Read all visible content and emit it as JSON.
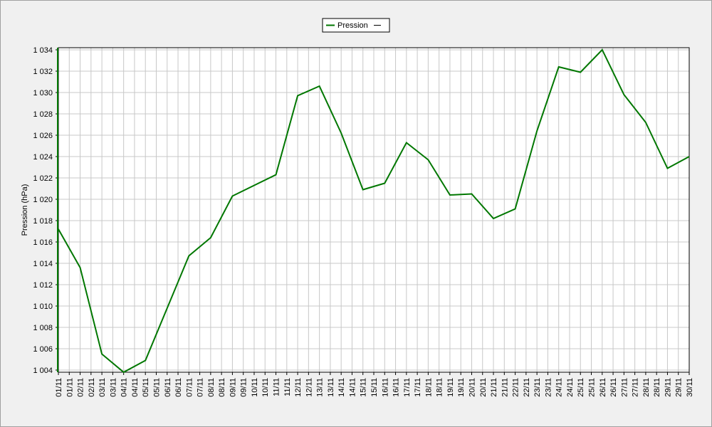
{
  "chart_data": {
    "type": "line",
    "y_label": "Pression (hPa)",
    "series": [
      {
        "name": "Pression",
        "color": "#007700",
        "values": [
          1017.2,
          1013.6,
          1005.5,
          1003.8,
          1004.9,
          1009.8,
          1014.7,
          1016.4,
          1020.3,
          1021.3,
          1022.3,
          1029.7,
          1030.6,
          1026.2,
          1020.9,
          1021.5,
          1025.3,
          1023.7,
          1020.4,
          1020.5,
          1018.2,
          1019.1,
          1026.4,
          1032.4,
          1031.9,
          1034.0,
          1029.8,
          1027.2,
          1022.9,
          1024.0
        ]
      }
    ],
    "x": [
      1,
      2,
      3,
      4,
      5,
      6,
      7,
      8,
      9,
      10,
      11,
      12,
      13,
      14,
      15,
      16,
      17,
      18,
      19,
      20,
      21,
      22,
      23,
      24,
      25,
      26,
      27,
      28,
      29,
      30
    ],
    "xlim": [
      1,
      30
    ],
    "xticks": [
      {
        "value": 1,
        "label": "01/11"
      },
      {
        "value": 1.5,
        "label": "01/11"
      },
      {
        "value": 2,
        "label": "02/11"
      },
      {
        "value": 2.5,
        "label": "02/11"
      },
      {
        "value": 3,
        "label": "03/11"
      },
      {
        "value": 3.5,
        "label": "03/11"
      },
      {
        "value": 4,
        "label": "04/11"
      },
      {
        "value": 4.5,
        "label": "04/11"
      },
      {
        "value": 5,
        "label": "05/11"
      },
      {
        "value": 5.5,
        "label": "05/11"
      },
      {
        "value": 6,
        "label": "06/11"
      },
      {
        "value": 6.5,
        "label": "06/11"
      },
      {
        "value": 7,
        "label": "07/11"
      },
      {
        "value": 7.5,
        "label": "07/11"
      },
      {
        "value": 8,
        "label": "08/11"
      },
      {
        "value": 8.5,
        "label": "08/11"
      },
      {
        "value": 9,
        "label": "09/11"
      },
      {
        "value": 9.5,
        "label": "09/11"
      },
      {
        "value": 10,
        "label": "10/11"
      },
      {
        "value": 10.5,
        "label": "10/11"
      },
      {
        "value": 11,
        "label": "11/11"
      },
      {
        "value": 11.5,
        "label": "11/11"
      },
      {
        "value": 12,
        "label": "12/11"
      },
      {
        "value": 12.5,
        "label": "12/11"
      },
      {
        "value": 13,
        "label": "13/11"
      },
      {
        "value": 13.5,
        "label": "13/11"
      },
      {
        "value": 14,
        "label": "14/11"
      },
      {
        "value": 14.5,
        "label": "14/11"
      },
      {
        "value": 15,
        "label": "15/11"
      },
      {
        "value": 15.5,
        "label": "15/11"
      },
      {
        "value": 16,
        "label": "16/11"
      },
      {
        "value": 16.5,
        "label": "16/11"
      },
      {
        "value": 17,
        "label": "17/11"
      },
      {
        "value": 17.5,
        "label": "17/11"
      },
      {
        "value": 18,
        "label": "18/11"
      },
      {
        "value": 18.5,
        "label": "18/11"
      },
      {
        "value": 19,
        "label": "19/11"
      },
      {
        "value": 19.5,
        "label": "19/11"
      },
      {
        "value": 20,
        "label": "20/11"
      },
      {
        "value": 20.5,
        "label": "20/11"
      },
      {
        "value": 21,
        "label": "21/11"
      },
      {
        "value": 21.5,
        "label": "21/11"
      },
      {
        "value": 22,
        "label": "22/11"
      },
      {
        "value": 22.5,
        "label": "22/11"
      },
      {
        "value": 23,
        "label": "23/11"
      },
      {
        "value": 23.5,
        "label": "23/11"
      },
      {
        "value": 24,
        "label": "24/11"
      },
      {
        "value": 24.5,
        "label": "24/11"
      },
      {
        "value": 25,
        "label": "25/11"
      },
      {
        "value": 25.5,
        "label": "25/11"
      },
      {
        "value": 26,
        "label": "26/11"
      },
      {
        "value": 26.5,
        "label": "26/11"
      },
      {
        "value": 27,
        "label": "27/11"
      },
      {
        "value": 27.5,
        "label": "27/11"
      },
      {
        "value": 28,
        "label": "28/11"
      },
      {
        "value": 28.5,
        "label": "28/11"
      },
      {
        "value": 29,
        "label": "29/11"
      },
      {
        "value": 29.5,
        "label": "29/11"
      },
      {
        "value": 30,
        "label": "30/11"
      }
    ],
    "ylim": [
      1003.8,
      1034.2
    ],
    "yticks": [
      {
        "value": 1004,
        "label": "1 004"
      },
      {
        "value": 1006,
        "label": "1 006"
      },
      {
        "value": 1008,
        "label": "1 008"
      },
      {
        "value": 1010,
        "label": "1 010"
      },
      {
        "value": 1012,
        "label": "1 012"
      },
      {
        "value": 1014,
        "label": "1 014"
      },
      {
        "value": 1016,
        "label": "1 016"
      },
      {
        "value": 1018,
        "label": "1 018"
      },
      {
        "value": 1020,
        "label": "1 020"
      },
      {
        "value": 1022,
        "label": "1 022"
      },
      {
        "value": 1024,
        "label": "1 024"
      },
      {
        "value": 1026,
        "label": "1 026"
      },
      {
        "value": 1028,
        "label": "1 028"
      },
      {
        "value": 1030,
        "label": "1 030"
      },
      {
        "value": 1032,
        "label": "1 032"
      },
      {
        "value": 1034,
        "label": "1 034"
      }
    ],
    "grid": true
  }
}
